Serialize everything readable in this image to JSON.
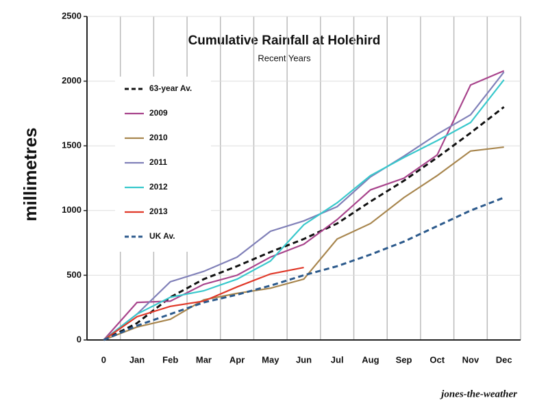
{
  "chart_data": {
    "type": "line",
    "title": "Cumulative Rainfall at Holehird",
    "subtitle": "Recent Years",
    "y_label": "millimetres",
    "credit": "jones-the-weather",
    "categories": [
      "0",
      "Jan",
      "Feb",
      "Mar",
      "Apr",
      "May",
      "Jun",
      "Jul",
      "Aug",
      "Sep",
      "Oct",
      "Nov",
      "Dec"
    ],
    "ylim": [
      0,
      2500
    ],
    "yticks": [
      0,
      500,
      1000,
      1500,
      2000,
      2500
    ],
    "grid": true,
    "legend": "top-left",
    "series": [
      {
        "name": "63-year Av.",
        "color": "#111111",
        "dashed": true,
        "values": [
          0,
          130,
          330,
          470,
          570,
          680,
          780,
          900,
          1070,
          1230,
          1410,
          1600,
          1800
        ]
      },
      {
        "name": "2009",
        "color": "#a8448c",
        "dashed": false,
        "values": [
          0,
          290,
          300,
          430,
          500,
          640,
          740,
          930,
          1160,
          1250,
          1430,
          1970,
          2080
        ]
      },
      {
        "name": "2010",
        "color": "#a8864e",
        "dashed": false,
        "values": [
          0,
          100,
          160,
          310,
          360,
          400,
          470,
          780,
          900,
          1100,
          1270,
          1460,
          1490
        ]
      },
      {
        "name": "2011",
        "color": "#8080b8",
        "dashed": false,
        "values": [
          0,
          200,
          450,
          530,
          640,
          840,
          920,
          1030,
          1260,
          1420,
          1590,
          1740,
          2070
        ]
      },
      {
        "name": "2012",
        "color": "#38c8cc",
        "dashed": false,
        "values": [
          0,
          200,
          330,
          380,
          470,
          610,
          890,
          1060,
          1270,
          1410,
          1540,
          1680,
          2010
        ]
      },
      {
        "name": "2013",
        "color": "#e03828",
        "dashed": false,
        "values": [
          0,
          180,
          260,
          300,
          410,
          510,
          560,
          null,
          null,
          null,
          null,
          null,
          null
        ]
      },
      {
        "name": "UK Av.",
        "color": "#2c5a8c",
        "dashed": true,
        "values": [
          0,
          110,
          200,
          290,
          350,
          420,
          500,
          570,
          660,
          760,
          880,
          1000,
          1100
        ]
      }
    ]
  }
}
